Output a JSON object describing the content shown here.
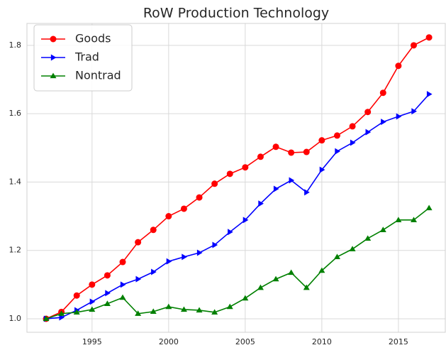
{
  "chart_data": {
    "type": "line",
    "title": "RoW Production Technology",
    "x": [
      1992,
      1993,
      1994,
      1995,
      1996,
      1997,
      1998,
      1999,
      2000,
      2001,
      2002,
      2003,
      2004,
      2005,
      2006,
      2007,
      2008,
      2009,
      2010,
      2011,
      2012,
      2013,
      2014,
      2015,
      2016,
      2017
    ],
    "series": [
      {
        "name": "Goods",
        "color": "#ff0000",
        "marker": "circle",
        "values": [
          1.0,
          1.02,
          1.068,
          1.1,
          1.127,
          1.166,
          1.224,
          1.26,
          1.3,
          1.322,
          1.355,
          1.395,
          1.424,
          1.443,
          1.474,
          1.503,
          1.486,
          1.488,
          1.522,
          1.536,
          1.563,
          1.605,
          1.661,
          1.74,
          1.8,
          1.823
        ]
      },
      {
        "name": "Trad",
        "color": "#0000ff",
        "marker": "triangle-right",
        "values": [
          1.0,
          1.004,
          1.025,
          1.05,
          1.075,
          1.1,
          1.116,
          1.137,
          1.168,
          1.181,
          1.193,
          1.216,
          1.254,
          1.289,
          1.337,
          1.38,
          1.405,
          1.37,
          1.436,
          1.49,
          1.515,
          1.546,
          1.576,
          1.592,
          1.607,
          1.657
        ]
      },
      {
        "name": "Nontrad",
        "color": "#008000",
        "marker": "triangle-up",
        "values": [
          1.0,
          1.015,
          1.019,
          1.027,
          1.044,
          1.062,
          1.015,
          1.021,
          1.035,
          1.027,
          1.025,
          1.019,
          1.035,
          1.06,
          1.091,
          1.116,
          1.135,
          1.091,
          1.141,
          1.181,
          1.204,
          1.235,
          1.26,
          1.289,
          1.289,
          1.324
        ]
      }
    ],
    "xlim": [
      1990.75,
      2018.06
    ],
    "xticks": [
      1995,
      2000,
      2005,
      2010,
      2015
    ],
    "ylim": [
      0.9605,
      1.864
    ],
    "yticks": [
      {
        "value": 1,
        "label": "1.0"
      },
      1.2,
      1.4,
      1.6,
      1.8
    ],
    "grid": true,
    "legend": "upper-left"
  }
}
